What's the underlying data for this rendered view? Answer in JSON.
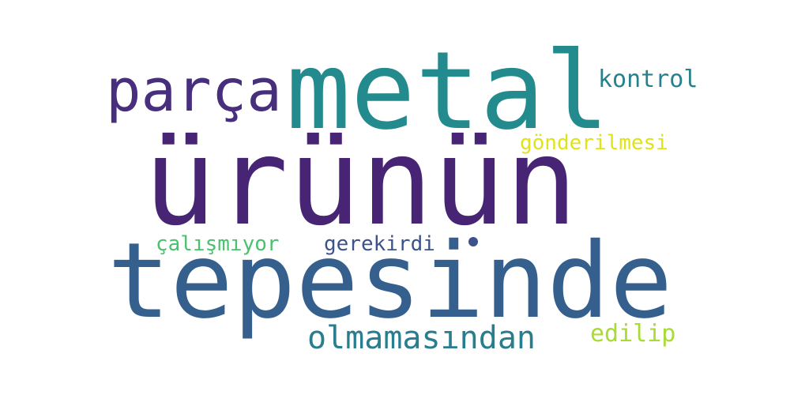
{
  "words": {
    "ururun": {
      "text": "ürünün",
      "color": "#482475"
    },
    "tepesinde": {
      "text": "tepesinde",
      "color": "#355f8d"
    },
    "metal": {
      "text": "metal",
      "color": "#238a8d"
    },
    "parca": {
      "text": "parça",
      "color": "#472f7d"
    },
    "olmamasindan": {
      "text": "olmamasından",
      "color": "#287d8e"
    },
    "kontrol": {
      "text": "kontrol",
      "color": "#26818e"
    },
    "gonderilmesi": {
      "text": "gönderilmesi",
      "color": "#dfe318"
    },
    "calismiyor": {
      "text": "çalışmıyor",
      "color": "#4ac16d"
    },
    "gerekirdi": {
      "text": "gerekirdi",
      "color": "#3b528b"
    },
    "edilip": {
      "text": "edilip",
      "color": "#a8db34"
    }
  },
  "dot_color": "#3b528b"
}
